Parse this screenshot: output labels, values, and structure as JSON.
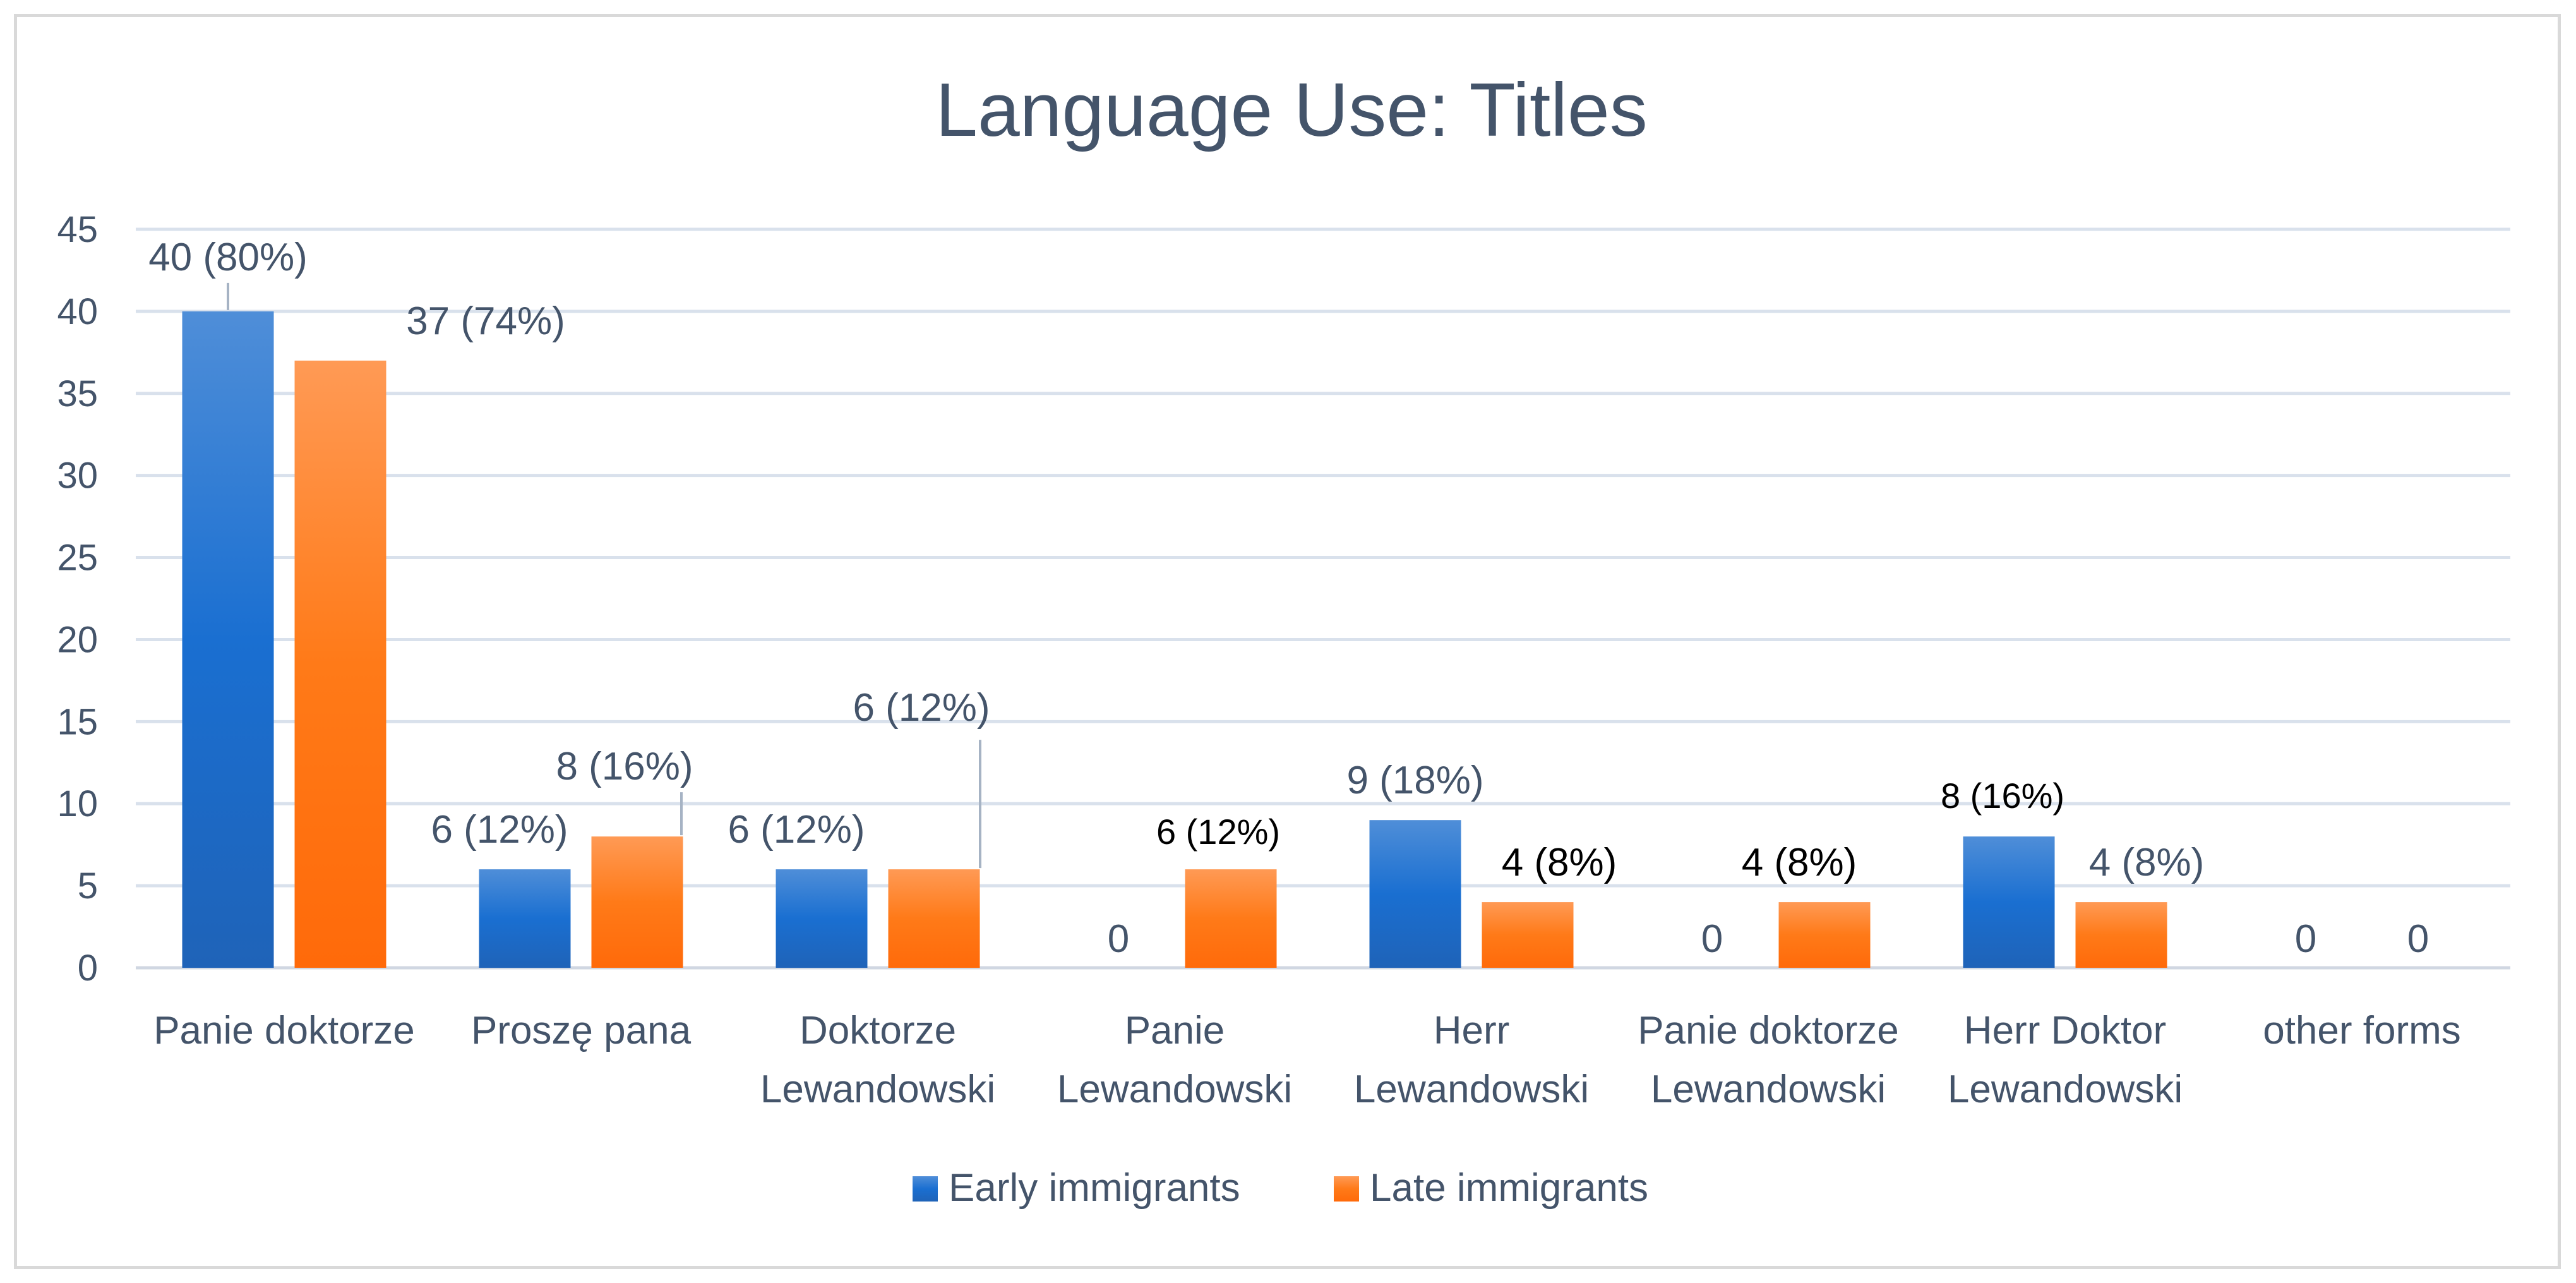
{
  "chart_data": {
    "type": "bar",
    "title": "Language Use: Titles",
    "xlabel": "",
    "ylabel": "",
    "ylim": [
      0,
      45
    ],
    "ytick_step": 5,
    "grid": true,
    "legend_position": "bottom",
    "categories": [
      [
        "Panie doktorze"
      ],
      [
        "Proszę pana"
      ],
      [
        "Doktorze",
        "Lewandowski"
      ],
      [
        "Panie",
        "Lewandowski"
      ],
      [
        "Herr",
        "Lewandowski"
      ],
      [
        "Panie doktorze",
        "Lewandowski"
      ],
      [
        "Herr Doktor",
        "Lewandowski"
      ],
      [
        "other forms"
      ]
    ],
    "series": [
      {
        "name": "Early immigrants",
        "color_light": "#4f8ed8",
        "color_dark": "#1f63b8",
        "values": [
          40,
          6,
          6,
          0,
          9,
          0,
          8,
          0
        ],
        "labels": [
          "40 (80%)",
          "6 (12%)",
          "6 (12%)",
          "0",
          "9 (18%)",
          "0",
          "8 (16%)",
          "0"
        ]
      },
      {
        "name": "Late immigrants",
        "color_light": "#ff9a55",
        "color_dark": "#ff6a0a",
        "values": [
          37,
          8,
          6,
          6,
          4,
          4,
          4,
          0
        ],
        "labels": [
          "37 (74%)",
          "8 (16%)",
          "6 (12%)",
          "6 (12%)",
          "4 (8%)",
          "4 (8%)",
          "4 (8%)",
          "0"
        ]
      }
    ],
    "colors": {
      "text": "#44546a",
      "black_label": "#000000",
      "grid": "#d9e1ec",
      "axis": "#d0d7e2",
      "leader": "#a6b3c4"
    }
  }
}
